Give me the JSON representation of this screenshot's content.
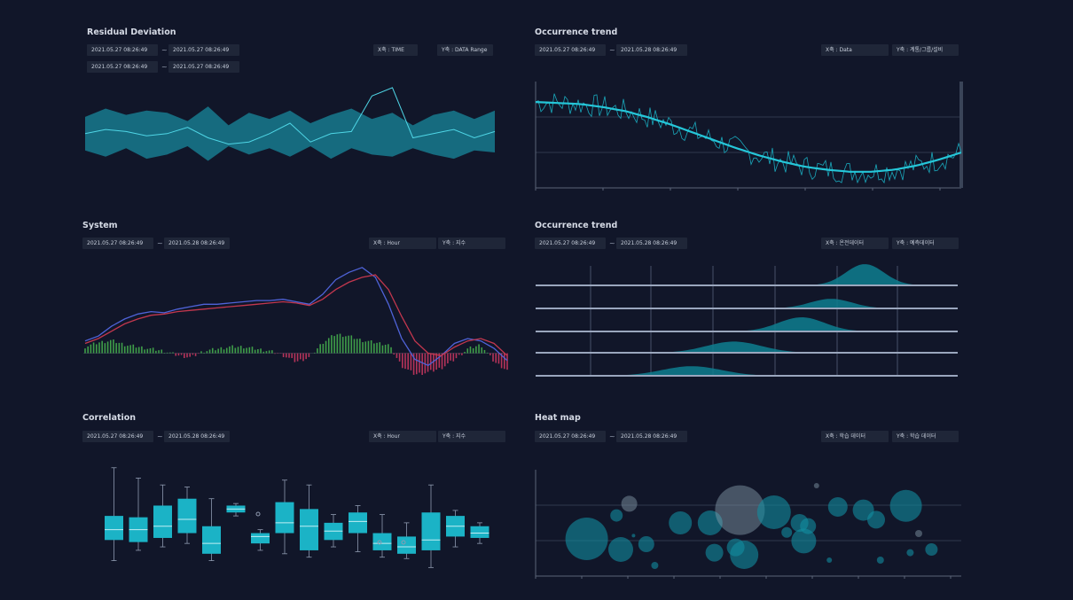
{
  "colors": {
    "background": "#111629",
    "chip_bg": "#1f2638",
    "teal": "#1bb3c6",
    "teal_dark": "#0e7e8f",
    "blue_line": "#4f63d8",
    "red_line": "#c2374e",
    "bar_pos": "#3f9e49",
    "bar_neg": "#b5335a",
    "axis": "#5a6478"
  },
  "panels": [
    {
      "title": "Residual Deviation",
      "date_rows": [
        [
          "2021.05.27 08:26:49",
          "~",
          "2021.05.27 08:26:49"
        ],
        [
          "2021.05.27 08:26:49",
          "~",
          "2021.05.27 08:26:49"
        ]
      ],
      "x_axis": "X축 : TIME",
      "y_axis": "Y축 : DATA Range"
    },
    {
      "title": "Occurrence trend",
      "date_rows": [
        [
          "2021.05.27 08:26:49",
          "~",
          "2021.05.28 08:26:49"
        ]
      ],
      "x_axis": "X축 : Data",
      "y_axis": "Y축 : 계통/그룹/설비"
    },
    {
      "title": "System",
      "date_rows": [
        [
          "2021.05.27 08:26:49",
          "~",
          "2021.05.28 08:26:49"
        ]
      ],
      "x_axis": "X축 : Hour",
      "y_axis": "Y축 : 지수"
    },
    {
      "title": "Occurrence trend",
      "date_rows": [
        [
          "2021.05.27 08:26:49",
          "~",
          "2021.05.28 08:26:49"
        ]
      ],
      "x_axis": "X축 : 온전데이터",
      "y_axis": "Y축 : 예측데이터"
    },
    {
      "title": "Correlation",
      "date_rows": [
        [
          "2021.05.27 08:26:49",
          "~",
          "2021.05.28 08:26:49"
        ]
      ],
      "x_axis": "X축 : Hour",
      "y_axis": "Y축 : 지수"
    },
    {
      "title": "Heat map",
      "date_rows": [
        [
          "2021.05.27 08:26:49",
          "~",
          "2021.05.28 08:26:49"
        ]
      ],
      "x_axis": "X축 : 학습 데이터",
      "y_axis": "Y축 : 학습 데이터"
    }
  ],
  "chart_data": [
    {
      "type": "area",
      "title": "Residual Deviation",
      "x": [
        0,
        1,
        2,
        3,
        4,
        5,
        6,
        7,
        8,
        9,
        10,
        11,
        12,
        13,
        14,
        15,
        16,
        17,
        18,
        19,
        20
      ],
      "upper": [
        48,
        52,
        49,
        51,
        50,
        46,
        53,
        44,
        50,
        47,
        51,
        45,
        49,
        52,
        47,
        50,
        44,
        49,
        51,
        47,
        51
      ],
      "lower": [
        32,
        29,
        33,
        28,
        30,
        34,
        27,
        34,
        30,
        33,
        29,
        34,
        28,
        33,
        30,
        29,
        33,
        30,
        28,
        32,
        31
      ],
      "center": [
        40,
        42,
        41,
        39,
        40,
        43,
        38,
        35,
        36,
        40,
        45,
        36,
        40,
        41,
        58,
        62,
        38,
        40,
        42,
        38,
        41
      ],
      "ylim": [
        20,
        70
      ]
    },
    {
      "type": "line",
      "title": "Occurrence trend",
      "trend": [
        0.85,
        0.84,
        0.83,
        0.8,
        0.76,
        0.7,
        0.63,
        0.55,
        0.47,
        0.39,
        0.32,
        0.26,
        0.21,
        0.18,
        0.16,
        0.16,
        0.18,
        0.22,
        0.28,
        0.35
      ],
      "noise_amplitude": 0.12,
      "ylim": [
        0,
        1
      ]
    },
    {
      "type": "line",
      "title": "System",
      "series": [
        {
          "values": [
            10,
            14,
            22,
            28,
            32,
            34,
            33,
            36,
            38,
            40,
            40,
            41,
            42,
            43,
            43,
            44,
            42,
            40,
            48,
            60,
            66,
            70,
            62,
            40,
            12,
            -5,
            -10,
            -2,
            8,
            12,
            10,
            4,
            -6
          ]
        },
        {
          "values": [
            8,
            12,
            18,
            24,
            28,
            31,
            32,
            34,
            35,
            36,
            37,
            38,
            39,
            40,
            41,
            42,
            41,
            39,
            44,
            52,
            58,
            62,
            64,
            52,
            30,
            10,
            0,
            -2,
            5,
            10,
            12,
            8,
            -2
          ]
        }
      ],
      "bars": [
        3,
        5,
        6,
        4,
        3,
        2,
        1,
        -1,
        -2,
        1,
        2,
        3,
        3,
        2,
        1,
        -1,
        -4,
        -2,
        5,
        9,
        8,
        6,
        5,
        4,
        -6,
        -10,
        -9,
        -7,
        -3,
        2,
        4,
        -4,
        -8
      ],
      "ylim": [
        -30,
        80
      ]
    },
    {
      "type": "area",
      "title": "Occurrence trend",
      "ridges": [
        {
          "center": 0.78,
          "width": 0.09,
          "height": 1.0
        },
        {
          "center": 0.7,
          "width": 0.1,
          "height": 0.6
        },
        {
          "center": 0.63,
          "width": 0.11,
          "height": 0.8
        },
        {
          "center": 0.47,
          "width": 0.13,
          "height": 0.7
        },
        {
          "center": 0.37,
          "width": 0.14,
          "height": 0.6
        }
      ]
    },
    {
      "type": "bar",
      "title": "Correlation",
      "boxes": [
        {
          "min": 5,
          "q1": 35,
          "median": 50,
          "q3": 70,
          "max": 140
        },
        {
          "min": 20,
          "q1": 32,
          "median": 50,
          "q3": 68,
          "max": 125
        },
        {
          "min": 25,
          "q1": 38,
          "median": 55,
          "q3": 85,
          "max": 115
        },
        {
          "min": 30,
          "q1": 45,
          "median": 65,
          "q3": 95,
          "max": 112
        },
        {
          "min": 5,
          "q1": 15,
          "median": 30,
          "q3": 55,
          "max": 95
        },
        {
          "min": 70,
          "q1": 75,
          "median": 80,
          "q3": 85,
          "max": 88
        },
        {
          "min": 20,
          "q1": 30,
          "median": 40,
          "q3": 45,
          "max": 50
        },
        {
          "min": 15,
          "q1": 45,
          "median": 60,
          "q3": 90,
          "max": 122
        },
        {
          "min": 10,
          "q1": 20,
          "median": 55,
          "q3": 80,
          "max": 115
        },
        {
          "min": 25,
          "q1": 35,
          "median": 48,
          "q3": 60,
          "max": 72
        },
        {
          "min": 18,
          "q1": 45,
          "median": 62,
          "q3": 75,
          "max": 85
        },
        {
          "min": 10,
          "q1": 20,
          "median": 30,
          "q3": 45,
          "max": 72
        },
        {
          "min": 8,
          "q1": 15,
          "median": 25,
          "q3": 40,
          "max": 60
        },
        {
          "min": -5,
          "q1": 20,
          "median": 35,
          "q3": 75,
          "max": 115
        },
        {
          "min": 25,
          "q1": 40,
          "median": 55,
          "q3": 70,
          "max": 78
        },
        {
          "min": 30,
          "q1": 38,
          "median": 45,
          "q3": 55,
          "max": 60
        }
      ],
      "ylim": [
        -20,
        150
      ]
    },
    {
      "type": "scatter",
      "title": "Heat map",
      "points": [
        {
          "x": 0.12,
          "y": 0.35,
          "r": 24
        },
        {
          "x": 0.19,
          "y": 0.57,
          "r": 7
        },
        {
          "x": 0.2,
          "y": 0.25,
          "r": 14
        },
        {
          "x": 0.22,
          "y": 0.68,
          "r": 9
        },
        {
          "x": 0.26,
          "y": 0.3,
          "r": 9
        },
        {
          "x": 0.28,
          "y": 0.1,
          "r": 4
        },
        {
          "x": 0.34,
          "y": 0.5,
          "r": 13
        },
        {
          "x": 0.41,
          "y": 0.5,
          "r": 14
        },
        {
          "x": 0.42,
          "y": 0.22,
          "r": 10
        },
        {
          "x": 0.47,
          "y": 0.27,
          "r": 10
        },
        {
          "x": 0.48,
          "y": 0.62,
          "r": 28
        },
        {
          "x": 0.49,
          "y": 0.2,
          "r": 16
        },
        {
          "x": 0.56,
          "y": 0.6,
          "r": 19
        },
        {
          "x": 0.59,
          "y": 0.41,
          "r": 6
        },
        {
          "x": 0.62,
          "y": 0.5,
          "r": 10
        },
        {
          "x": 0.63,
          "y": 0.33,
          "r": 14
        },
        {
          "x": 0.64,
          "y": 0.47,
          "r": 9
        },
        {
          "x": 0.66,
          "y": 0.85,
          "r": 3
        },
        {
          "x": 0.71,
          "y": 0.65,
          "r": 11
        },
        {
          "x": 0.77,
          "y": 0.62,
          "r": 12
        },
        {
          "x": 0.8,
          "y": 0.53,
          "r": 10
        },
        {
          "x": 0.81,
          "y": 0.15,
          "r": 4
        },
        {
          "x": 0.87,
          "y": 0.66,
          "r": 18
        },
        {
          "x": 0.88,
          "y": 0.22,
          "r": 4
        },
        {
          "x": 0.9,
          "y": 0.4,
          "r": 4
        },
        {
          "x": 0.93,
          "y": 0.25,
          "r": 7
        },
        {
          "x": 0.69,
          "y": 0.15,
          "r": 3
        },
        {
          "x": 0.23,
          "y": 0.38,
          "r": 2
        }
      ]
    }
  ]
}
